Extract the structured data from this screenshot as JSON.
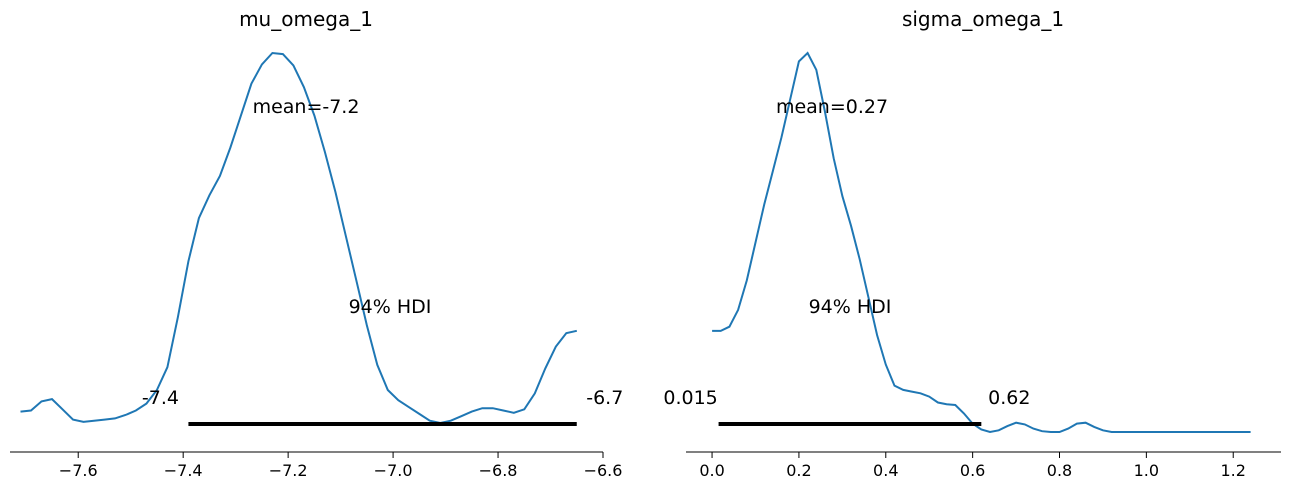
{
  "chart_data": [
    {
      "type": "line",
      "title": "mu_omega_1",
      "xlim": [
        -7.73,
        -6.6
      ],
      "xticks": [
        -7.6,
        -7.4,
        -7.2,
        -7.0,
        -6.8,
        -6.6
      ],
      "xtick_labels": [
        "−7.6",
        "−7.4",
        "−7.2",
        "−7.0",
        "−6.8",
        "−6.6"
      ],
      "series": [
        {
          "x": [
            -7.71,
            -7.69,
            -7.67,
            -7.65,
            -7.63,
            -7.61,
            -7.59,
            -7.57,
            -7.55,
            -7.53,
            -7.51,
            -7.49,
            -7.47,
            -7.45,
            -7.43,
            -7.41,
            -7.39,
            -7.37,
            -7.35,
            -7.33,
            -7.31,
            -7.29,
            -7.27,
            -7.25,
            -7.23,
            -7.21,
            -7.19,
            -7.17,
            -7.15,
            -7.13,
            -7.11,
            -7.09,
            -7.07,
            -7.05,
            -7.03,
            -7.01,
            -6.99,
            -6.97,
            -6.95,
            -6.93,
            -6.91,
            -6.89,
            -6.87,
            -6.85,
            -6.83,
            -6.81,
            -6.79,
            -6.77,
            -6.75,
            -6.73,
            -6.71,
            -6.69,
            -6.67,
            -6.65
          ],
          "y": [
            0.1,
            0.11,
            0.19,
            0.21,
            0.12,
            0.03,
            0.01,
            0.02,
            0.03,
            0.04,
            0.07,
            0.11,
            0.17,
            0.29,
            0.49,
            0.93,
            1.42,
            1.8,
            2.0,
            2.17,
            2.42,
            2.7,
            2.98,
            3.15,
            3.25,
            3.24,
            3.14,
            2.95,
            2.7,
            2.38,
            2.03,
            1.64,
            1.25,
            0.86,
            0.51,
            0.29,
            0.2,
            0.14,
            0.08,
            0.02,
            0.0,
            0.02,
            0.06,
            0.1,
            0.13,
            0.13,
            0.11,
            0.09,
            0.12,
            0.26,
            0.48,
            0.67,
            0.79,
            0.81
          ]
        }
      ],
      "mean_label": "mean=-7.2",
      "hdi_label": "94% HDI",
      "hdi": [
        -7.39,
        -6.65
      ],
      "hdi_low_label": "-7.4",
      "hdi_high_label": "-6.7",
      "grid": false,
      "color": "#1f77b4"
    },
    {
      "type": "line",
      "title": "sigma_omega_1",
      "xlim": [
        -0.06,
        1.31
      ],
      "xticks": [
        0.0,
        0.2,
        0.4,
        0.6,
        0.8,
        1.0,
        1.2
      ],
      "xtick_labels": [
        "0.0",
        "0.2",
        "0.4",
        "0.6",
        "0.8",
        "1.0",
        "1.2"
      ],
      "series": [
        {
          "x": [
            0.0,
            0.02,
            0.04,
            0.06,
            0.08,
            0.1,
            0.12,
            0.14,
            0.16,
            0.18,
            0.2,
            0.22,
            0.24,
            0.26,
            0.28,
            0.3,
            0.32,
            0.34,
            0.36,
            0.38,
            0.4,
            0.42,
            0.44,
            0.46,
            0.48,
            0.5,
            0.52,
            0.54,
            0.56,
            0.58,
            0.6,
            0.62,
            0.64,
            0.66,
            0.68,
            0.7,
            0.72,
            0.74,
            0.76,
            0.78,
            0.8,
            0.82,
            0.84,
            0.86,
            0.88,
            0.9,
            0.92,
            0.94,
            0.96,
            0.98,
            1.0,
            1.02,
            1.04,
            1.06,
            1.08,
            1.1,
            1.12,
            1.14,
            1.16,
            1.18,
            1.2,
            1.22,
            1.24
          ],
          "y": [
            1.2,
            1.2,
            1.25,
            1.45,
            1.8,
            2.25,
            2.7,
            3.1,
            3.5,
            3.95,
            4.4,
            4.5,
            4.3,
            3.8,
            3.25,
            2.8,
            2.45,
            2.05,
            1.6,
            1.15,
            0.8,
            0.55,
            0.5,
            0.48,
            0.46,
            0.42,
            0.35,
            0.33,
            0.32,
            0.22,
            0.1,
            0.03,
            0.0,
            0.02,
            0.07,
            0.11,
            0.09,
            0.04,
            0.01,
            0.0,
            0.0,
            0.04,
            0.1,
            0.11,
            0.06,
            0.02,
            0.0,
            0.0,
            0.0,
            0.0,
            0.0,
            0.0,
            0.0,
            0.0,
            0.0,
            0.0,
            0.0,
            0.0,
            0.0,
            0.0,
            0.0,
            0.0,
            0.0
          ]
        }
      ],
      "mean_label": "mean=0.27",
      "hdi_label": "94% HDI",
      "hdi": [
        0.015,
        0.62
      ],
      "hdi_low_label": "0.015",
      "hdi_high_label": "0.62",
      "grid": false,
      "color": "#1f77b4"
    }
  ]
}
